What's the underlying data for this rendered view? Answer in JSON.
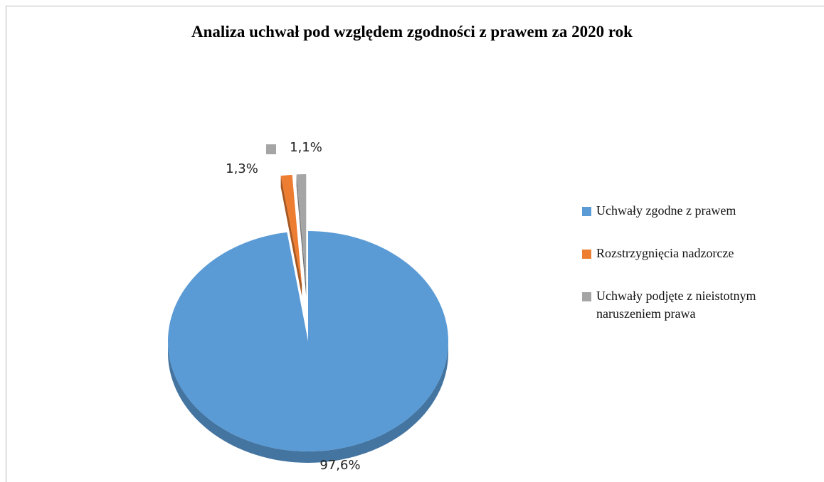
{
  "chart_data": {
    "type": "pie",
    "title": "Analiza uchwał pod względem zgodności z prawem za 2020 rok",
    "categories": [
      "Uchwały zgodne z prawem",
      "Rozstrzygnięcia nadzorcze",
      "Uchwały podjęte z nieistotnym naruszeniem prawa"
    ],
    "values": [
      97.6,
      1.3,
      1.1
    ],
    "value_labels": [
      "97,6%",
      "1,3%",
      "1,1%"
    ],
    "colors": [
      "#5b9bd5",
      "#ed7d31",
      "#a5a5a5"
    ],
    "legend": "right"
  }
}
